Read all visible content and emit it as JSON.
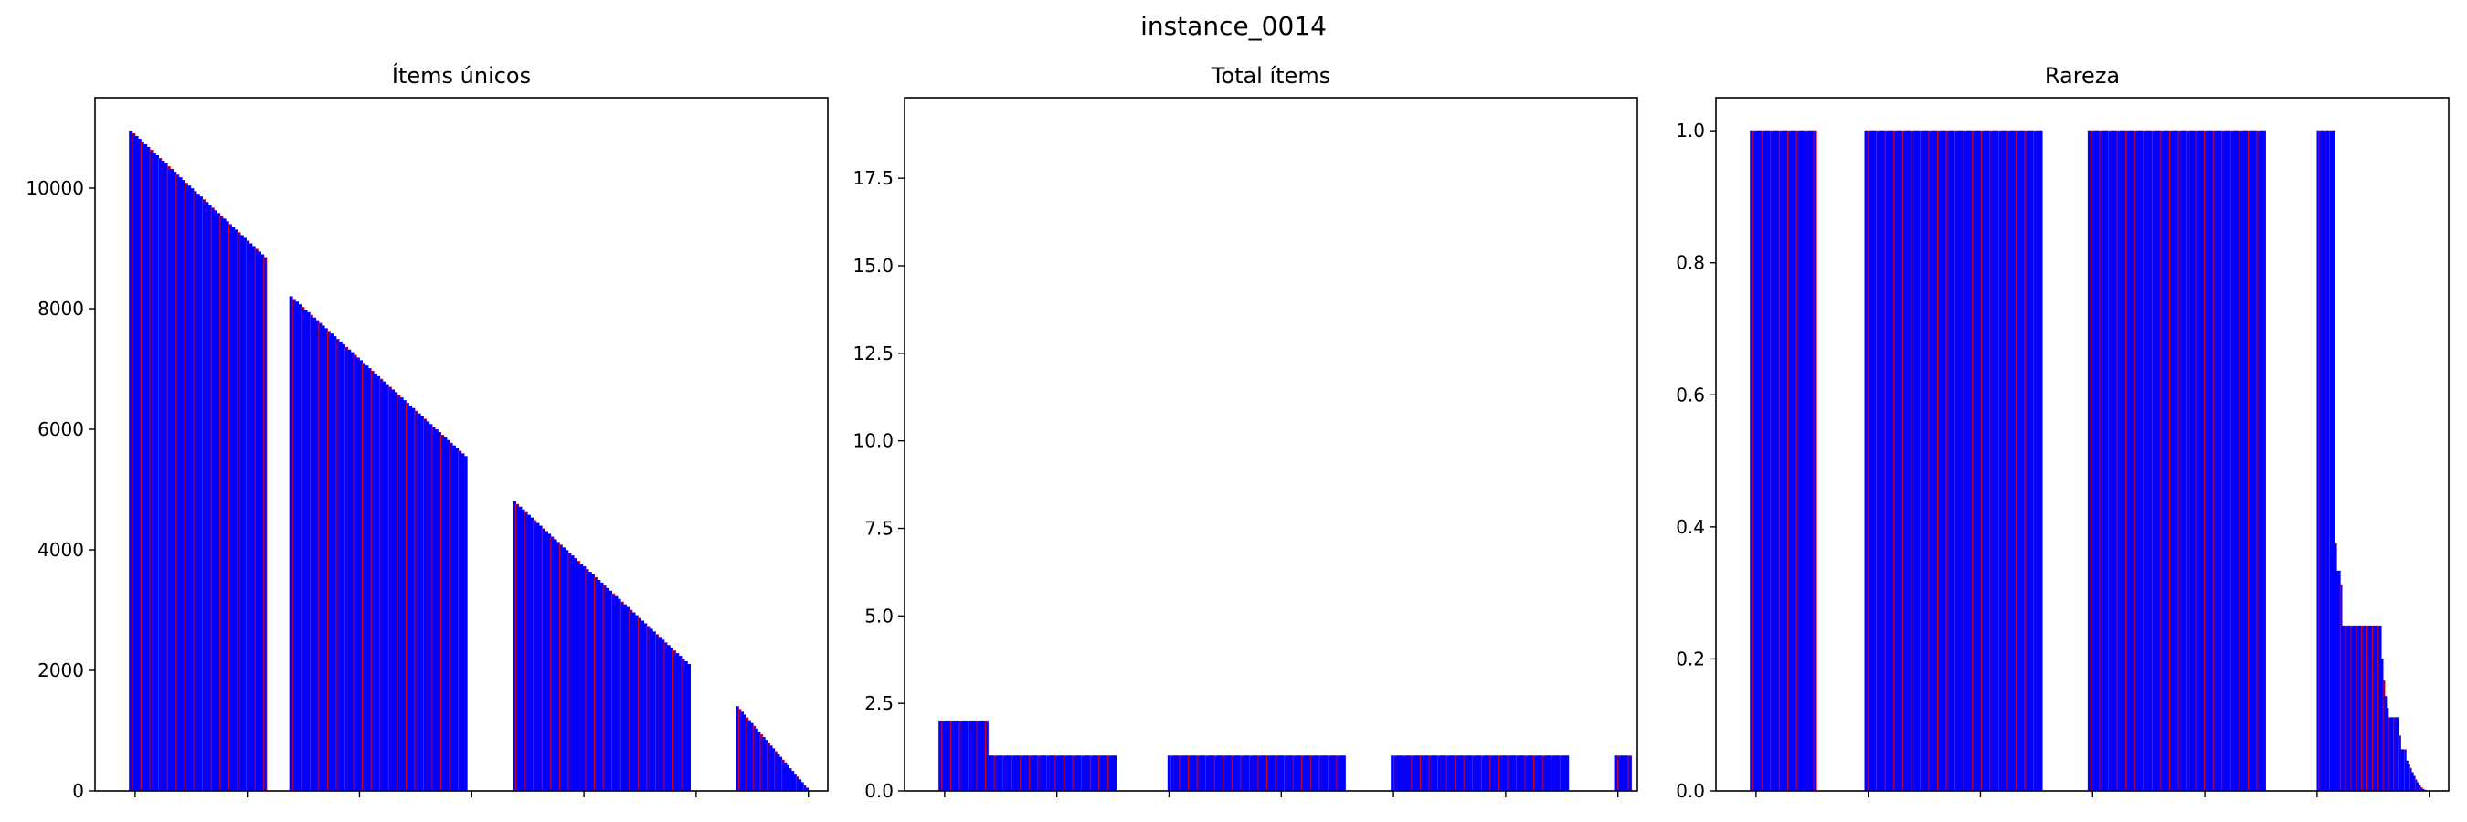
{
  "figure": {
    "suptitle": "instance_0014"
  },
  "colors": {
    "bar_fill": "#0000ff",
    "bar_edge": "#ff0000",
    "axes": "#000000",
    "background": "#ffffff"
  },
  "chart_data": [
    {
      "type": "bar",
      "title": "Ítems únicos",
      "xlabel": "",
      "ylabel": "",
      "ylim": [
        0,
        11500
      ],
      "yticks": [
        0,
        2000,
        4000,
        6000,
        8000,
        10000
      ],
      "ytick_labels": [
        "0",
        "2000",
        "4000",
        "6000",
        "8000",
        "10000"
      ],
      "x_tick_count": 7,
      "grid": false,
      "segments": [
        {
          "from": 10950,
          "to": 8850,
          "bars": 47
        },
        {
          "from": 8200,
          "to": 5550,
          "bars": 61
        },
        {
          "from": 4800,
          "to": 2100,
          "bars": 61
        },
        {
          "from": 1400,
          "to": 0,
          "bars": 31
        }
      ]
    },
    {
      "type": "bar",
      "title": "Total ítems",
      "xlabel": "",
      "ylabel": "",
      "ylim": [
        0,
        19.8
      ],
      "yticks": [
        0,
        2.5,
        5,
        7.5,
        10,
        12.5,
        15,
        17.5
      ],
      "ytick_labels": [
        "0.0",
        "2.5",
        "5.0",
        "7.5",
        "10.0",
        "12.5",
        "15.0",
        "17.5"
      ],
      "x_tick_count": 7,
      "grid": false,
      "segments": [
        {
          "values": [
            2,
            2,
            2,
            2,
            2,
            2,
            2,
            2,
            2,
            2,
            2,
            2,
            2,
            2,
            2,
            2,
            2,
            1,
            1,
            1,
            1,
            1,
            1,
            1,
            1,
            1,
            1,
            1,
            1,
            1,
            1,
            1,
            1,
            1,
            1,
            1,
            1,
            1,
            1,
            1,
            1,
            1,
            1,
            1,
            1,
            1,
            1,
            1,
            1,
            1,
            1,
            1,
            1,
            1,
            1,
            1,
            1,
            1,
            1,
            1,
            1
          ]
        },
        {
          "values": [
            1,
            1,
            1,
            1,
            1,
            1,
            1,
            1,
            1,
            1,
            1,
            1,
            1,
            1,
            1,
            1,
            1,
            1,
            1,
            1,
            1,
            1,
            1,
            1,
            1,
            1,
            1,
            1,
            1,
            1,
            1,
            1,
            1,
            1,
            1,
            1,
            1,
            1,
            1,
            1,
            1,
            1,
            1,
            1,
            1,
            1,
            1,
            1,
            1,
            1,
            1,
            1,
            1,
            1,
            1,
            1,
            1,
            1,
            1,
            1,
            1
          ]
        },
        {
          "values": [
            1,
            1,
            1,
            1,
            1,
            1,
            1,
            1,
            1,
            1,
            1,
            1,
            1,
            1,
            1,
            1,
            1,
            1,
            1,
            1,
            1,
            1,
            1,
            1,
            1,
            1,
            1,
            1,
            1,
            1,
            1,
            1,
            1,
            1,
            1,
            1,
            1,
            1,
            1,
            1,
            1,
            1,
            1,
            1,
            1,
            1,
            1,
            1,
            1,
            1,
            1,
            1,
            1,
            1,
            1,
            1,
            1,
            1,
            1,
            1,
            1
          ]
        },
        {
          "values": [
            1,
            1,
            1,
            1,
            1
          ]
        }
      ]
    },
    {
      "type": "bar",
      "title": "Rareza",
      "xlabel": "",
      "ylabel": "",
      "ylim": [
        0,
        1.05
      ],
      "yticks": [
        0,
        0.2,
        0.4,
        0.6,
        0.8,
        1.0
      ],
      "ytick_labels": [
        "0.0",
        "0.2",
        "0.4",
        "0.6",
        "0.8",
        "1.0"
      ],
      "x_tick_count": 7,
      "grid": false,
      "segments": [
        {
          "from": 1.0,
          "to": 1.0,
          "bars": 23
        },
        {
          "from": 1.0,
          "to": 1.0,
          "bars": 61
        },
        {
          "from": 1.0,
          "to": 1.0,
          "bars": 61
        },
        {
          "values": [
            1,
            1,
            1,
            1,
            1,
            1,
            1,
            1,
            1,
            1,
            0.375,
            0.333,
            0.333,
            0.3125,
            0.25,
            0.25,
            0.25,
            0.25,
            0.25,
            0.25,
            0.25,
            0.25,
            0.25,
            0.25,
            0.25,
            0.25,
            0.25,
            0.25,
            0.25,
            0.25,
            0.25,
            0.25,
            0.25,
            0.25,
            0.25,
            0.25,
            0.2,
            0.167,
            0.143,
            0.125,
            0.111,
            0.111,
            0.111,
            0.111,
            0.111,
            0.111,
            0.0833,
            0.0625,
            0.0625,
            0.0625,
            0.0455,
            0.04,
            0.0345,
            0.0278,
            0.0222,
            0.0169,
            0.0125,
            0.0083,
            0.005,
            0.0025,
            0.001
          ]
        }
      ]
    }
  ]
}
